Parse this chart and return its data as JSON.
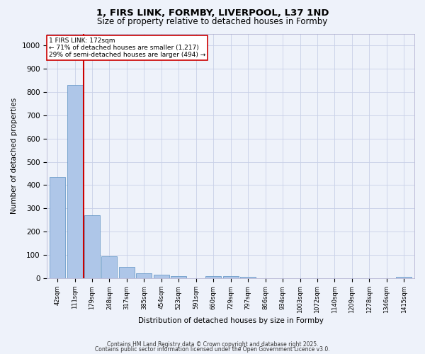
{
  "title_line1": "1, FIRS LINK, FORMBY, LIVERPOOL, L37 1ND",
  "title_line2": "Size of property relative to detached houses in Formby",
  "xlabel": "Distribution of detached houses by size in Formby",
  "ylabel": "Number of detached properties",
  "bar_labels": [
    "42sqm",
    "111sqm",
    "179sqm",
    "248sqm",
    "317sqm",
    "385sqm",
    "454sqm",
    "523sqm",
    "591sqm",
    "660sqm",
    "729sqm",
    "797sqm",
    "866sqm",
    "934sqm",
    "1003sqm",
    "1072sqm",
    "1140sqm",
    "1209sqm",
    "1278sqm",
    "1346sqm",
    "1415sqm"
  ],
  "bar_values": [
    435,
    830,
    270,
    95,
    50,
    22,
    15,
    10,
    0,
    10,
    10,
    5,
    0,
    0,
    0,
    0,
    0,
    0,
    0,
    0,
    5
  ],
  "bar_color": "#aec6e8",
  "bar_edge_color": "#5a8fc2",
  "vline_index": 2,
  "vline_color": "#cc0000",
  "annotation_line1": "1 FIRS LINK: 172sqm",
  "annotation_line2": "← 71% of detached houses are smaller (1,217)",
  "annotation_line3": "29% of semi-detached houses are larger (494) →",
  "annotation_box_color": "#cc0000",
  "ylim": [
    0,
    1050
  ],
  "yticks": [
    0,
    100,
    200,
    300,
    400,
    500,
    600,
    700,
    800,
    900,
    1000
  ],
  "background_color": "#eef2fa",
  "grid_color": "#c8d0e8",
  "footer_line1": "Contains HM Land Registry data © Crown copyright and database right 2025.",
  "footer_line2": "Contains public sector information licensed under the Open Government Licence v3.0."
}
